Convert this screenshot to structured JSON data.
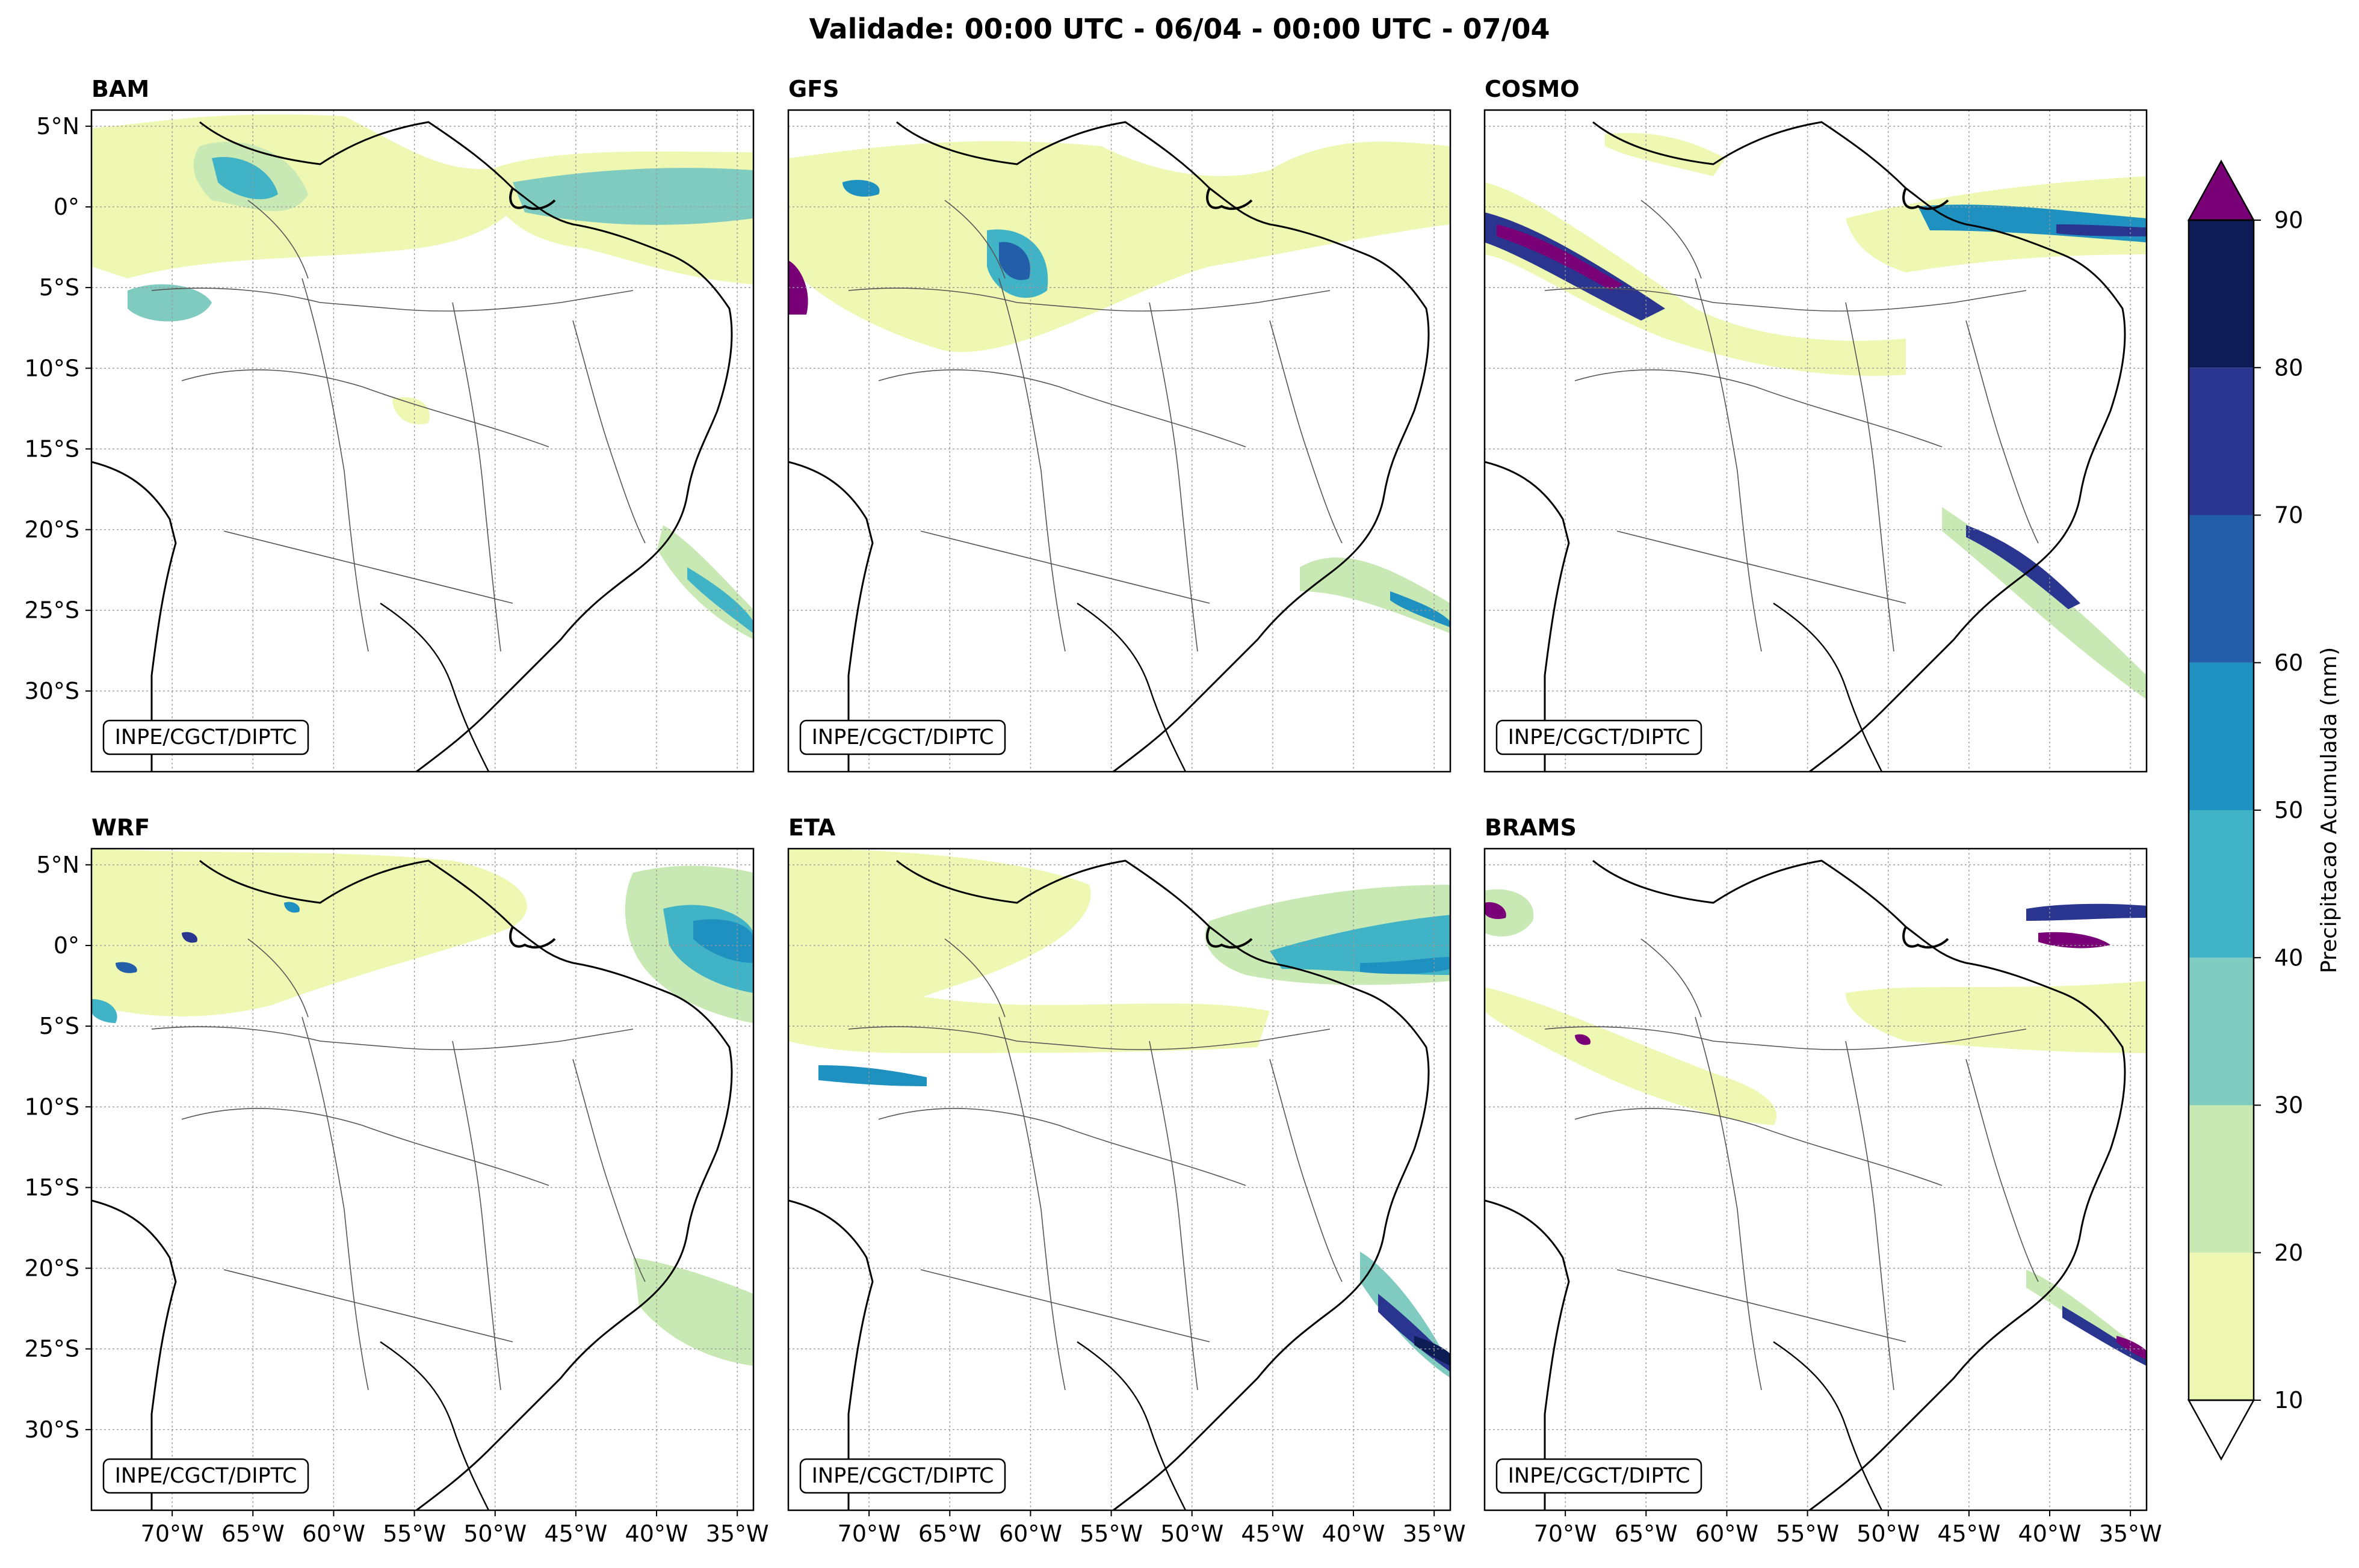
{
  "figure_title": "Validade: 00:00 UTC - 06/04 - 00:00 UTC - 07/04",
  "credit": "INPE/CGCT/DIPTC",
  "panels": [
    {
      "id": "bam",
      "title": "BAM"
    },
    {
      "id": "gfs",
      "title": "GFS"
    },
    {
      "id": "cosmo",
      "title": "COSMO"
    },
    {
      "id": "wrf",
      "title": "WRF"
    },
    {
      "id": "eta",
      "title": "ETA"
    },
    {
      "id": "brams",
      "title": "BRAMS"
    }
  ],
  "map_extent": {
    "lon": [
      -75,
      -34
    ],
    "lat": [
      -35,
      6
    ]
  },
  "gridlines": {
    "lon": [
      -70,
      -65,
      -60,
      -55,
      -50,
      -45,
      -40,
      -35
    ],
    "lat": [
      5,
      0,
      -5,
      -10,
      -15,
      -20,
      -25,
      -30
    ]
  },
  "lat_tick_labels": [
    "5°N",
    "0°",
    "5°S",
    "10°S",
    "15°S",
    "20°S",
    "25°S",
    "30°S"
  ],
  "lon_tick_labels": [
    "70°W",
    "65°W",
    "60°W",
    "55°W",
    "50°W",
    "45°W",
    "40°W",
    "35°W"
  ],
  "colorbar": {
    "label": "Precipitacao Acumulada (mm)",
    "levels": [
      10,
      20,
      30,
      40,
      50,
      60,
      70,
      80,
      90
    ],
    "tick_labels": [
      "10",
      "20",
      "30",
      "40",
      "50",
      "60",
      "70",
      "80",
      "90"
    ],
    "colors": [
      "#eef8b3",
      "#c8e8b4",
      "#80cbc0",
      "#40b4c6",
      "#1f91c0",
      "#235ea8",
      "#2a3590",
      "#0d1c55"
    ],
    "over_color": "#7a0077",
    "under_color": "#ffffff",
    "extend": "both"
  },
  "colors": {
    "coast": "#000000",
    "border": "#555555",
    "grid": "#9a9a9a"
  }
}
